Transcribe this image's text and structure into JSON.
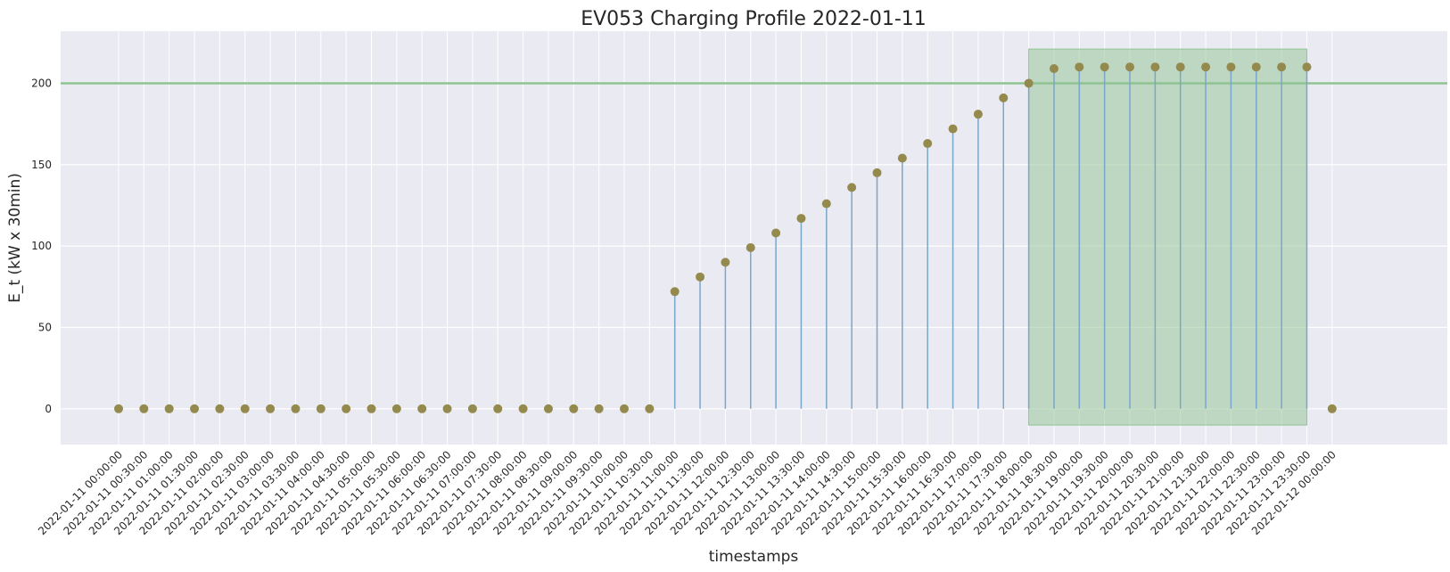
{
  "chart_data": {
    "type": "scatter",
    "title": "EV053 Charging Profile 2022-01-11",
    "xlabel": "timestamps",
    "ylabel": "E_t (kW x 30min)",
    "ylim": [
      -22,
      232
    ],
    "yticks": [
      0,
      50,
      100,
      150,
      200
    ],
    "grid": true,
    "categories": [
      "2022-01-11 00:00:00",
      "2022-01-11 00:30:00",
      "2022-01-11 01:00:00",
      "2022-01-11 01:30:00",
      "2022-01-11 02:00:00",
      "2022-01-11 02:30:00",
      "2022-01-11 03:00:00",
      "2022-01-11 03:30:00",
      "2022-01-11 04:00:00",
      "2022-01-11 04:30:00",
      "2022-01-11 05:00:00",
      "2022-01-11 05:30:00",
      "2022-01-11 06:00:00",
      "2022-01-11 06:30:00",
      "2022-01-11 07:00:00",
      "2022-01-11 07:30:00",
      "2022-01-11 08:00:00",
      "2022-01-11 08:30:00",
      "2022-01-11 09:00:00",
      "2022-01-11 09:30:00",
      "2022-01-11 10:00:00",
      "2022-01-11 10:30:00",
      "2022-01-11 11:00:00",
      "2022-01-11 11:30:00",
      "2022-01-11 12:00:00",
      "2022-01-11 12:30:00",
      "2022-01-11 13:00:00",
      "2022-01-11 13:30:00",
      "2022-01-11 14:00:00",
      "2022-01-11 14:30:00",
      "2022-01-11 15:00:00",
      "2022-01-11 15:30:00",
      "2022-01-11 16:00:00",
      "2022-01-11 16:30:00",
      "2022-01-11 17:00:00",
      "2022-01-11 17:30:00",
      "2022-01-11 18:00:00",
      "2022-01-11 18:30:00",
      "2022-01-11 19:00:00",
      "2022-01-11 19:30:00",
      "2022-01-11 20:00:00",
      "2022-01-11 20:30:00",
      "2022-01-11 21:00:00",
      "2022-01-11 21:30:00",
      "2022-01-11 22:00:00",
      "2022-01-11 22:30:00",
      "2022-01-11 23:00:00",
      "2022-01-11 23:30:00",
      "2022-01-12 00:00:00"
    ],
    "values": [
      0,
      0,
      0,
      0,
      0,
      0,
      0,
      0,
      0,
      0,
      0,
      0,
      0,
      0,
      0,
      0,
      0,
      0,
      0,
      0,
      0,
      0,
      72,
      81,
      90,
      99,
      108,
      117,
      126,
      136,
      145,
      154,
      163,
      172,
      181,
      191,
      200,
      209,
      210,
      210,
      210,
      210,
      210,
      210,
      210,
      210,
      210,
      210,
      0
    ],
    "stem_start": "2022-01-11 10:30:00",
    "stem_end": "2022-01-11 23:30:00",
    "horizontal_line": 200,
    "shaded_region": {
      "x_start": "2022-01-11 18:00:00",
      "x_end": "2022-01-11 23:30:00",
      "y_start": -10,
      "y_end": 221
    },
    "colors": {
      "background": "#eaeaf2",
      "grid": "#ffffff",
      "marker": "#958a4d",
      "stem": "#7aa6c9",
      "hline": "#8fc491",
      "region": "#8fc491"
    }
  }
}
